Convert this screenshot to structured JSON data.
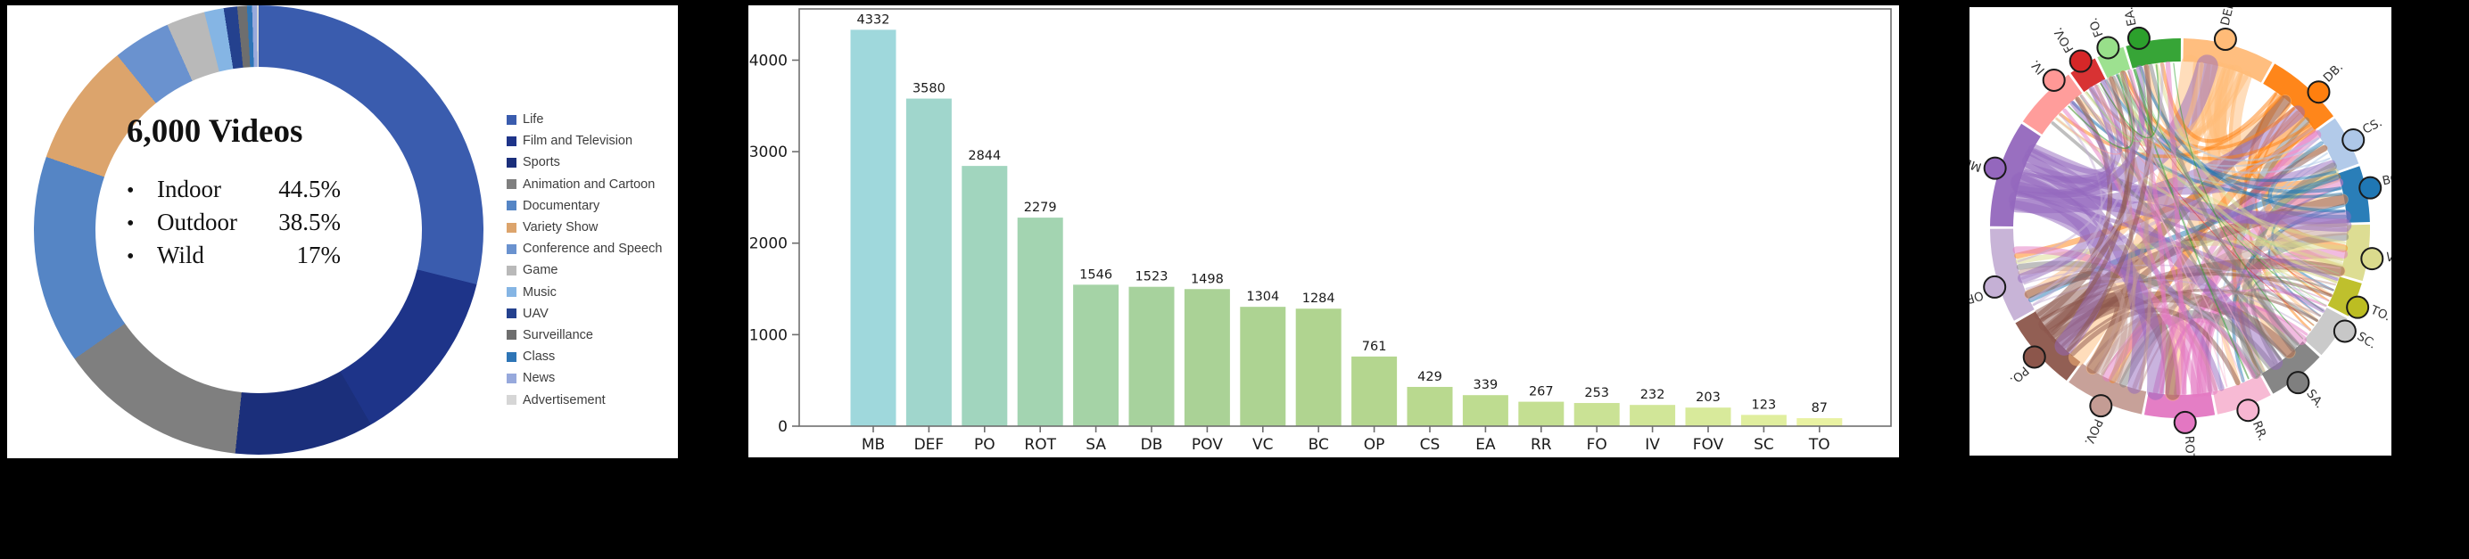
{
  "figure": {
    "background_color": "#000000",
    "panels": [
      "video-category-donut",
      "text-instance-bar-chart",
      "category-cooccurrence-chord-diagram"
    ]
  },
  "chart_data": [
    {
      "type": "pie",
      "title": "6,000 Videos",
      "center_stats": [
        {
          "bullet": "•",
          "label": "Indoor",
          "value": "44.5%"
        },
        {
          "bullet": "•",
          "label": "Outdoor",
          "value": "38.5%"
        },
        {
          "bullet": "•",
          "label": "Wild",
          "value": "17%"
        }
      ],
      "legend_position": "right",
      "donut_hole": true,
      "slices": [
        {
          "label": "Life",
          "color": "#3A5CAE",
          "start_deg": 0,
          "end_deg": 104,
          "pct_est": 28.9
        },
        {
          "label": "Film and Television",
          "color": "#1E3489",
          "start_deg": 104,
          "end_deg": 150,
          "pct_est": 12.8
        },
        {
          "label": "Sports",
          "color": "#1B2F7B",
          "start_deg": 150,
          "end_deg": 186,
          "pct_est": 10.0
        },
        {
          "label": "Animation and Cartoon",
          "color": "#7F7F7F",
          "start_deg": 186,
          "end_deg": 235,
          "pct_est": 13.6
        },
        {
          "label": "Documentary",
          "color": "#5585C5",
          "start_deg": 235,
          "end_deg": 289,
          "pct_est": 15.0
        },
        {
          "label": "Variety Show",
          "color": "#DCA46C",
          "start_deg": 289,
          "end_deg": 321,
          "pct_est": 8.9
        },
        {
          "label": "Conference and Speech",
          "color": "#6A92CF",
          "start_deg": 321,
          "end_deg": 336,
          "pct_est": 4.2
        },
        {
          "label": "Game",
          "color": "#B9B9B9",
          "start_deg": 336,
          "end_deg": 346,
          "pct_est": 2.8
        },
        {
          "label": "Music",
          "color": "#85B5E4",
          "start_deg": 346,
          "end_deg": 351,
          "pct_est": 1.4
        },
        {
          "label": "UAV",
          "color": "#24418E",
          "start_deg": 351,
          "end_deg": 354.5,
          "pct_est": 1.0
        },
        {
          "label": "Surveillance",
          "color": "#6E6E6E",
          "start_deg": 354.5,
          "end_deg": 357,
          "pct_est": 0.7
        },
        {
          "label": "Class",
          "color": "#2E75B6",
          "start_deg": 357,
          "end_deg": 358.3,
          "pct_est": 0.4
        },
        {
          "label": "News",
          "color": "#97A9DC",
          "start_deg": 358.3,
          "end_deg": 359.5,
          "pct_est": 0.3
        },
        {
          "label": "Advertisement",
          "color": "#D6D6D6",
          "start_deg": 359.5,
          "end_deg": 360,
          "pct_est": 0.1
        }
      ]
    },
    {
      "type": "bar",
      "title": "",
      "xlabel": "",
      "ylabel": "",
      "categories": [
        "MB",
        "DEF",
        "PO",
        "ROT",
        "SA",
        "DB",
        "POV",
        "VC",
        "BC",
        "OP",
        "CS",
        "EA",
        "RR",
        "FO",
        "IV",
        "FOV",
        "SC",
        "TO"
      ],
      "values": [
        4332,
        3580,
        2844,
        2279,
        1546,
        1523,
        1498,
        1304,
        1284,
        761,
        429,
        339,
        267,
        253,
        232,
        203,
        123,
        87
      ],
      "bar_colors": [
        "#9FD8DC",
        "#A0D6CC",
        "#A1D5BE",
        "#A3D4B1",
        "#A5D3A6",
        "#A7D29D",
        "#AAD296",
        "#ADD392",
        "#B0D490",
        "#B4D68F",
        "#B9D98F",
        "#BEDC90",
        "#C4DF92",
        "#CAE295",
        "#D1E698",
        "#D8EA9B",
        "#E0EE9E",
        "#E9F2A2"
      ],
      "yticks": [
        0,
        1000,
        2000,
        3000,
        4000
      ],
      "ylim": [
        0,
        4560
      ],
      "grid": false,
      "frame": true,
      "value_labels_shown": true
    },
    {
      "type": "chord",
      "title": "",
      "ring": true,
      "labels_rotated_radially": true,
      "nodes": [
        {
          "label": "DEF.",
          "color": "#FFBB78",
          "angle_deg": 13.5,
          "value": 3580
        },
        {
          "label": "DB.",
          "color": "#FF7F0E",
          "angle_deg": 45.5,
          "value": 1523
        },
        {
          "label": "CS.",
          "color": "#AEC7E8",
          "angle_deg": 63,
          "value": 429
        },
        {
          "label": "BC.",
          "color": "#1F77B4",
          "angle_deg": 78,
          "value": 1284
        },
        {
          "label": "VC.",
          "color": "#DBDB8D",
          "angle_deg": 99,
          "value": 1304
        },
        {
          "label": "TO.",
          "color": "#BCBD22",
          "angle_deg": 114,
          "value": 87
        },
        {
          "label": "SC.",
          "color": "#C7C7C7",
          "angle_deg": 122,
          "value": 123
        },
        {
          "label": "SA.",
          "color": "#7F7F7F",
          "angle_deg": 142.6,
          "value": 1546
        },
        {
          "label": "RR.",
          "color": "#F7B6D2",
          "angle_deg": 159.5,
          "value": 267
        },
        {
          "label": "ROT.",
          "color": "#E377C2",
          "angle_deg": 178.5,
          "value": 2279
        },
        {
          "label": "POV.",
          "color": "#C49C94",
          "angle_deg": 204,
          "value": 1498
        },
        {
          "label": "PO.",
          "color": "#8C564B",
          "angle_deg": 228.5,
          "value": 2844
        },
        {
          "label": "OP.",
          "color": "#C5B0D5",
          "angle_deg": 252.4,
          "value": 761
        },
        {
          "label": "MB.",
          "color": "#9467BD",
          "angle_deg": 288,
          "value": 4332
        },
        {
          "label": "IV.",
          "color": "#FF9896",
          "angle_deg": 319.6,
          "value": 232
        },
        {
          "label": "FOV.",
          "color": "#D62728",
          "angle_deg": 329.3,
          "value": 203
        },
        {
          "label": "FO.",
          "color": "#98DF8A",
          "angle_deg": 338.3,
          "value": 253
        },
        {
          "label": "EA.",
          "color": "#2CA02C",
          "angle_deg": 347.8,
          "value": 339
        }
      ],
      "links_note": "dense all-pairs translucent ribbons; ribbon width scales with endpoint magnitudes, colored by the larger endpoint"
    }
  ]
}
